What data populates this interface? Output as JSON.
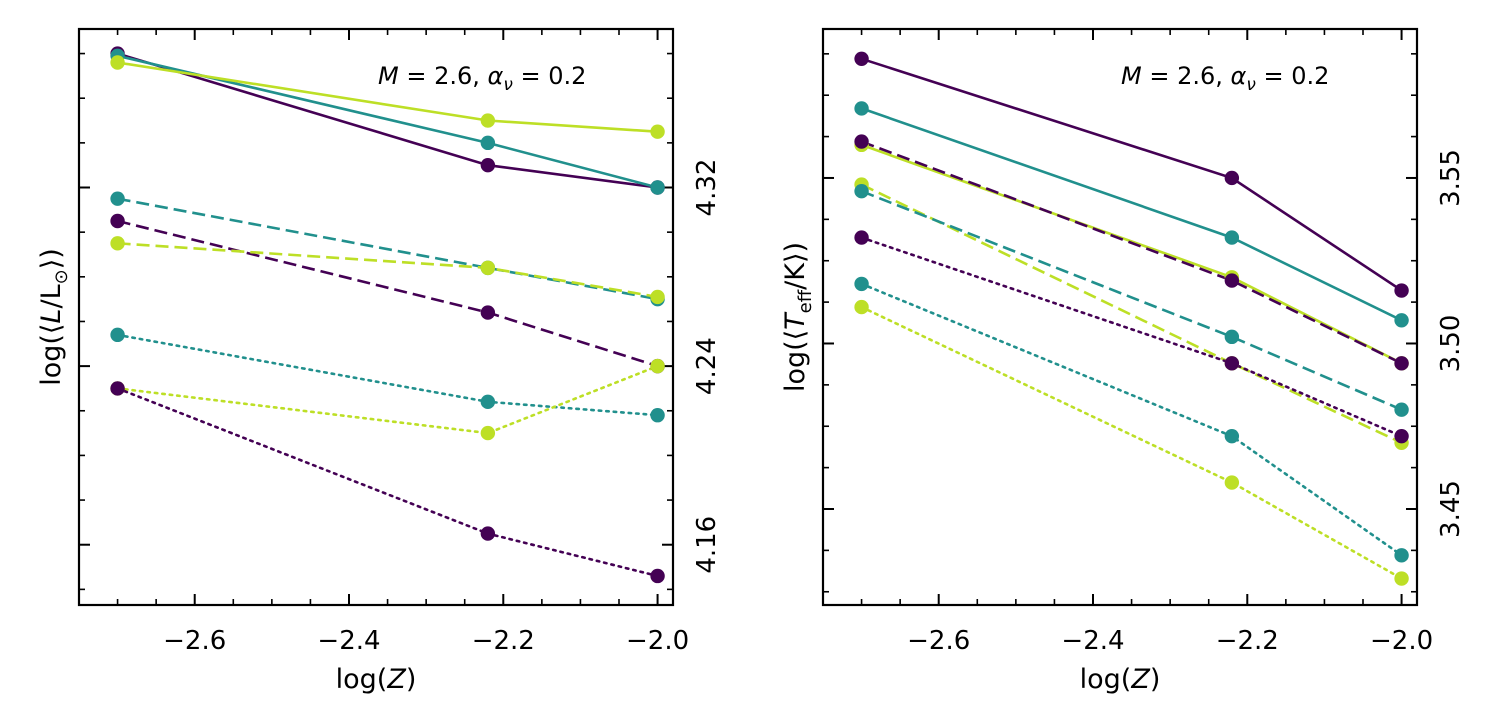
{
  "chart_data": [
    {
      "type": "line",
      "annotation_parts": [
        "M",
        " = 2.6, ",
        "α",
        "ν",
        " = 0.2"
      ],
      "annotation_placement": "top-right",
      "xlabel_parts": [
        "log(",
        "Z",
        ")"
      ],
      "ylabel_parts": [
        "log(⟨",
        "L",
        "/L",
        "⊙",
        "⟩)"
      ],
      "y_axis_side": "right",
      "xlim": [
        -2.75,
        -1.98
      ],
      "ylim": [
        4.133,
        4.391
      ],
      "xticks": [
        -2.6,
        -2.4,
        -2.2,
        -2.0
      ],
      "xtick_labels": [
        "−2.6",
        "−2.4",
        "−2.2",
        "−2.0"
      ],
      "yticks": [
        4.16,
        4.24,
        4.32
      ],
      "ytick_labels": [
        "4.16",
        "4.24",
        "4.32"
      ],
      "grid": false,
      "series": [
        {
          "color": "#440154",
          "dash": "solid",
          "x": [
            -2.7,
            -2.22,
            -2.0
          ],
          "y": [
            4.38,
            4.33,
            4.32
          ]
        },
        {
          "color": "#21908d",
          "dash": "solid",
          "x": [
            -2.7,
            -2.22,
            -2.0
          ],
          "y": [
            4.379,
            4.34,
            4.32
          ]
        },
        {
          "color": "#bddf26",
          "dash": "solid",
          "x": [
            -2.7,
            -2.22,
            -2.0
          ],
          "y": [
            4.376,
            4.35,
            4.345
          ]
        },
        {
          "color": "#21908d",
          "dash": "dashed",
          "x": [
            -2.7,
            -2.22,
            -2.0
          ],
          "y": [
            4.315,
            4.284,
            4.27
          ]
        },
        {
          "color": "#440154",
          "dash": "dashed",
          "x": [
            -2.7,
            -2.22,
            -2.0
          ],
          "y": [
            4.305,
            4.264,
            4.24
          ]
        },
        {
          "color": "#bddf26",
          "dash": "dashed",
          "x": [
            -2.7,
            -2.22,
            -2.0
          ],
          "y": [
            4.295,
            4.284,
            4.271
          ]
        },
        {
          "color": "#21908d",
          "dash": "dotted",
          "x": [
            -2.7,
            -2.22,
            -2.0
          ],
          "y": [
            4.254,
            4.224,
            4.218
          ]
        },
        {
          "color": "#bddf26",
          "dash": "dotted",
          "x": [
            -2.7,
            -2.22,
            -2.0
          ],
          "y": [
            4.23,
            4.21,
            4.24
          ]
        },
        {
          "color": "#440154",
          "dash": "dotted",
          "x": [
            -2.7,
            -2.22,
            -2.0
          ],
          "y": [
            4.23,
            4.165,
            4.146
          ]
        }
      ]
    },
    {
      "type": "line",
      "annotation_parts": [
        "M",
        " = 2.6, ",
        "α",
        "ν",
        " = 0.2"
      ],
      "annotation_placement": "top-right",
      "xlabel_parts": [
        "log(",
        "Z",
        ")"
      ],
      "ylabel_parts": [
        "log(⟨",
        "T",
        "eff",
        "/K⟩)"
      ],
      "y_axis_side": "right",
      "xlim": [
        -2.75,
        -1.98
      ],
      "ylim": [
        3.421,
        3.595
      ],
      "xticks": [
        -2.6,
        -2.4,
        -2.2,
        -2.0
      ],
      "xtick_labels": [
        "−2.6",
        "−2.4",
        "−2.2",
        "−2.0"
      ],
      "yticks": [
        3.45,
        3.5,
        3.55
      ],
      "ytick_labels": [
        "3.45",
        "3.50",
        "3.55"
      ],
      "grid": false,
      "series": [
        {
          "color": "#440154",
          "dash": "solid",
          "x": [
            -2.7,
            -2.22,
            -2.0
          ],
          "y": [
            3.586,
            3.55,
            3.516
          ]
        },
        {
          "color": "#21908d",
          "dash": "solid",
          "x": [
            -2.7,
            -2.22,
            -2.0
          ],
          "y": [
            3.571,
            3.532,
            3.507
          ]
        },
        {
          "color": "#bddf26",
          "dash": "solid",
          "x": [
            -2.7,
            -2.22,
            -2.0
          ],
          "y": [
            3.56,
            3.52,
            3.494
          ]
        },
        {
          "color": "#440154",
          "dash": "dashed",
          "x": [
            -2.7,
            -2.22,
            -2.0
          ],
          "y": [
            3.561,
            3.519,
            3.494
          ]
        },
        {
          "color": "#bddf26",
          "dash": "dashed",
          "x": [
            -2.7,
            -2.22,
            -2.0
          ],
          "y": [
            3.548,
            3.494,
            3.47
          ]
        },
        {
          "color": "#21908d",
          "dash": "dashed",
          "x": [
            -2.7,
            -2.22,
            -2.0
          ],
          "y": [
            3.546,
            3.502,
            3.48
          ]
        },
        {
          "color": "#440154",
          "dash": "dotted",
          "x": [
            -2.7,
            -2.22,
            -2.0
          ],
          "y": [
            3.532,
            3.494,
            3.472
          ]
        },
        {
          "color": "#21908d",
          "dash": "dotted",
          "x": [
            -2.7,
            -2.22,
            -2.0
          ],
          "y": [
            3.518,
            3.472,
            3.436
          ]
        },
        {
          "color": "#bddf26",
          "dash": "dotted",
          "x": [
            -2.7,
            -2.22,
            -2.0
          ],
          "y": [
            3.511,
            3.458,
            3.429
          ]
        }
      ]
    }
  ]
}
